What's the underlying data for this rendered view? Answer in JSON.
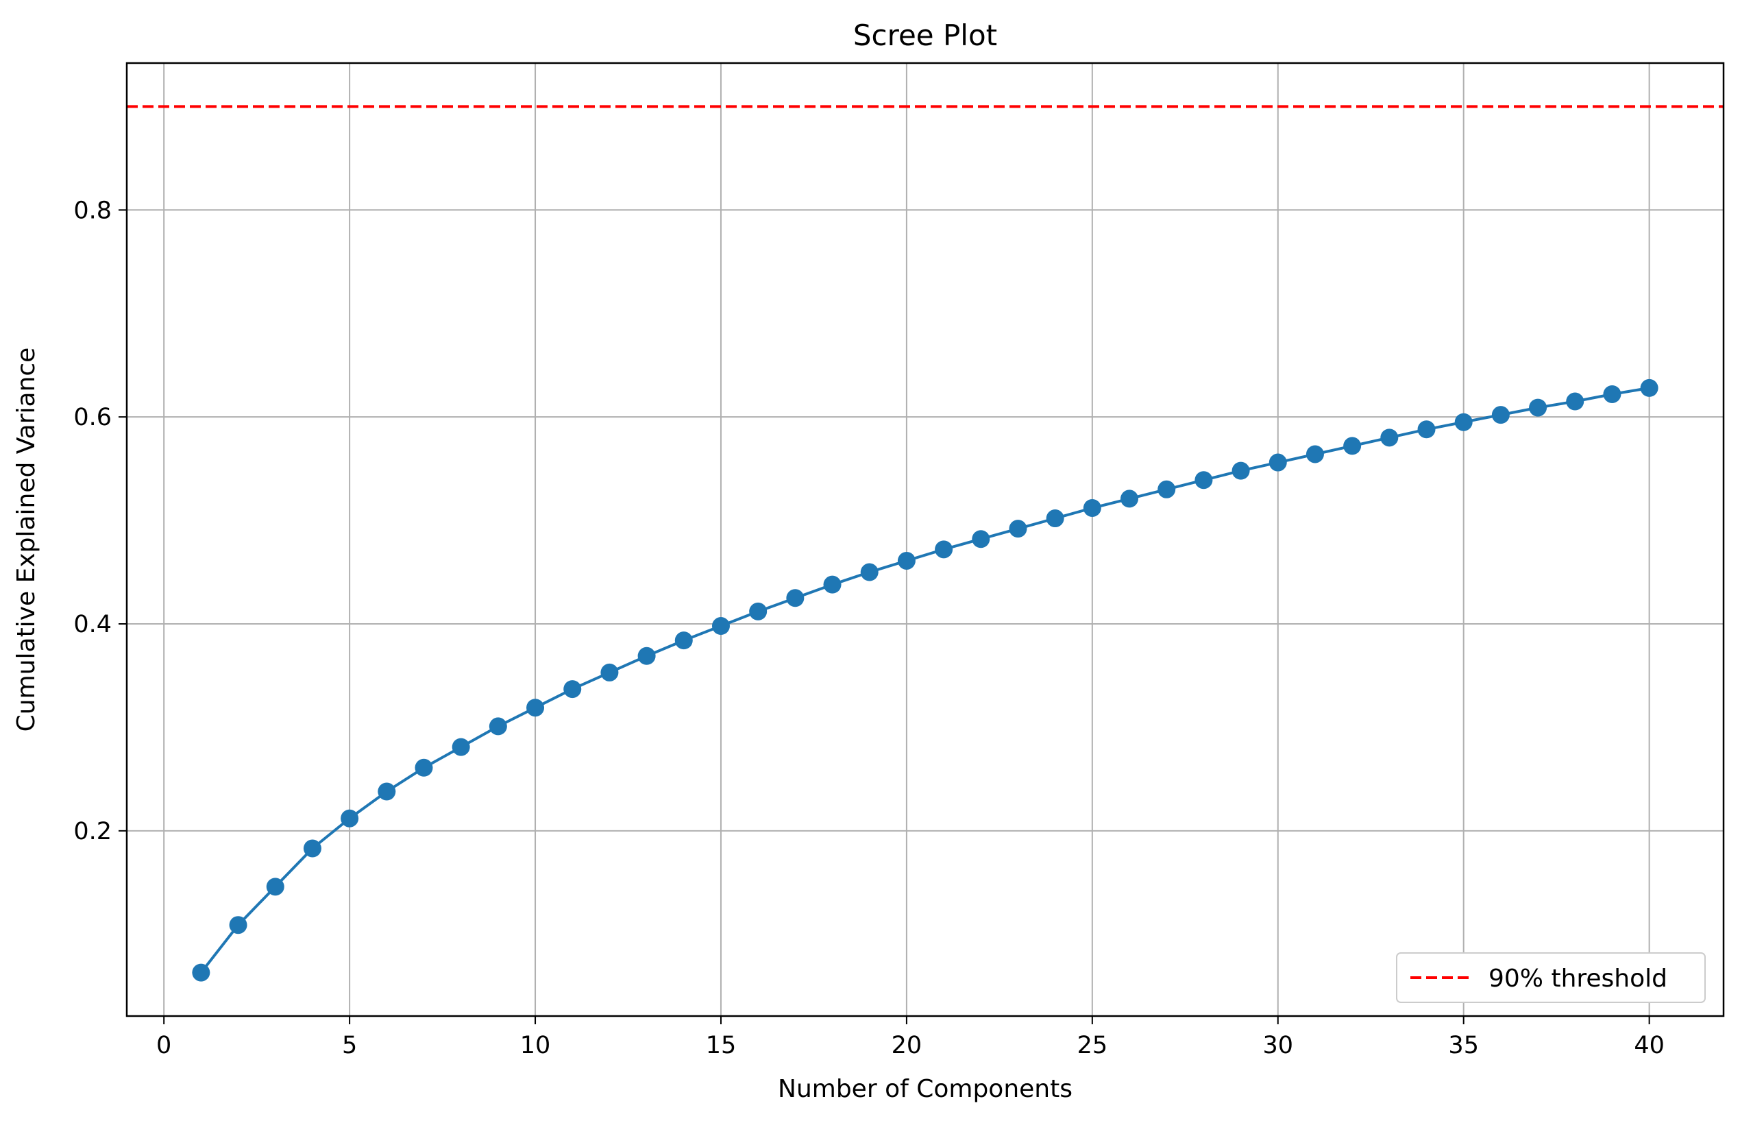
{
  "chart_data": {
    "type": "line",
    "title": "Scree Plot",
    "xlabel": "Number of Components",
    "ylabel": "Cumulative Explained Variance",
    "xlim": [
      -1,
      42
    ],
    "ylim": [
      0.021,
      0.942
    ],
    "xticks": [
      0,
      5,
      10,
      15,
      20,
      25,
      30,
      35,
      40
    ],
    "xtick_labels": [
      "0",
      "5",
      "10",
      "15",
      "20",
      "25",
      "30",
      "35",
      "40"
    ],
    "yticks": [
      0.2,
      0.4,
      0.6,
      0.8
    ],
    "ytick_labels": [
      "0.2",
      "0.4",
      "0.6",
      "0.8"
    ],
    "grid": true,
    "legend_position": "bottom-right",
    "series": [
      {
        "name": "",
        "color": "#1f77b4",
        "marker": "circle",
        "x": [
          1,
          2,
          3,
          4,
          5,
          6,
          7,
          8,
          9,
          10,
          11,
          12,
          13,
          14,
          15,
          16,
          17,
          18,
          19,
          20,
          21,
          22,
          23,
          24,
          25,
          26,
          27,
          28,
          29,
          30,
          31,
          32,
          33,
          34,
          35,
          36,
          37,
          38,
          39,
          40
        ],
        "y": [
          0.063,
          0.109,
          0.146,
          0.183,
          0.212,
          0.238,
          0.261,
          0.281,
          0.301,
          0.319,
          0.337,
          0.353,
          0.369,
          0.384,
          0.398,
          0.412,
          0.425,
          0.438,
          0.45,
          0.461,
          0.472,
          0.482,
          0.492,
          0.502,
          0.512,
          0.521,
          0.53,
          0.539,
          0.548,
          0.556,
          0.564,
          0.572,
          0.58,
          0.588,
          0.595,
          0.602,
          0.609,
          0.615,
          0.622,
          0.628
        ]
      }
    ],
    "reference_lines": [
      {
        "name": "90% threshold",
        "orientation": "horizontal",
        "value": 0.9,
        "color": "#ff0000",
        "style": "dashed"
      }
    ]
  }
}
